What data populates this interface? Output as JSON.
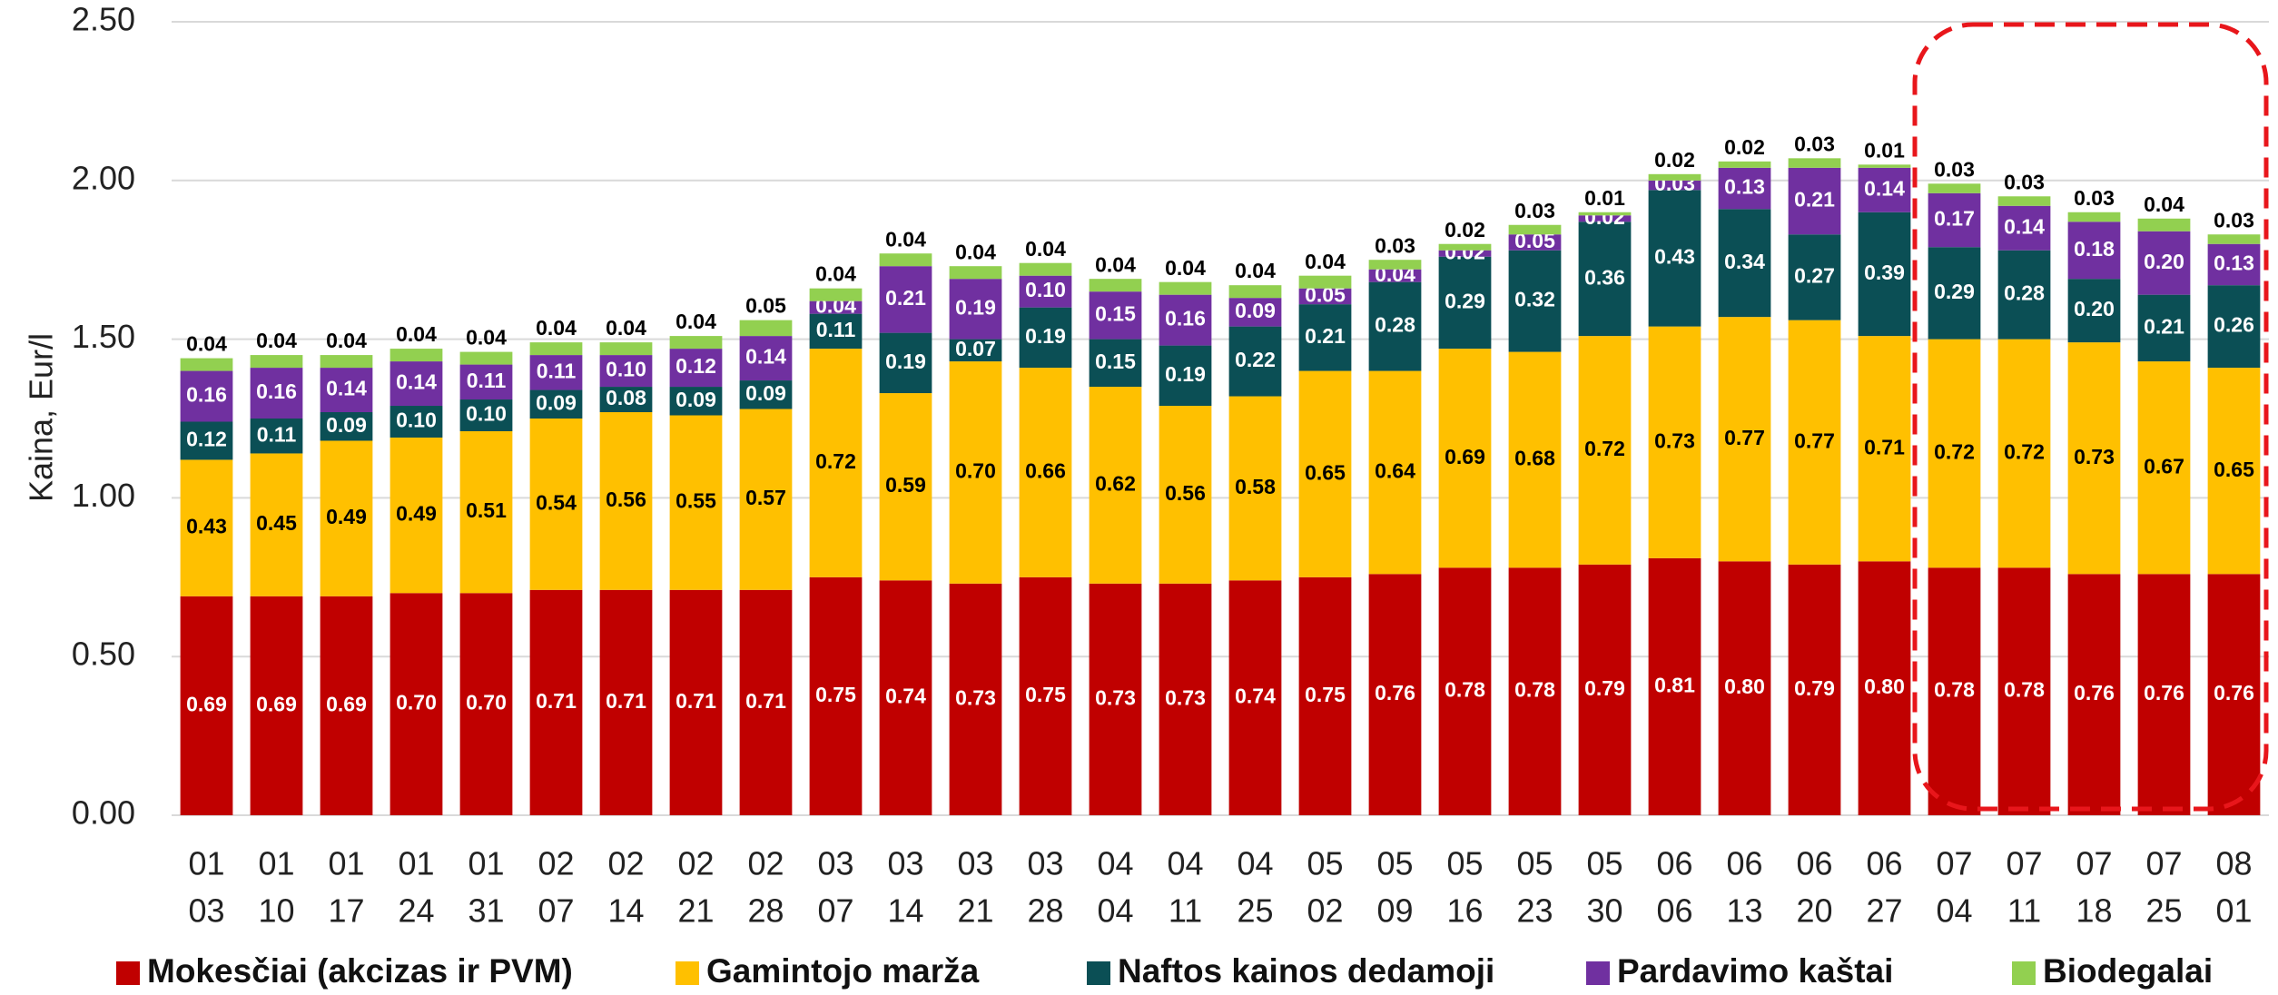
{
  "chart_data": {
    "type": "stacked_bar",
    "y_label": "Kaina, Eur/l",
    "categories": [
      [
        "01",
        "03"
      ],
      [
        "01",
        "10"
      ],
      [
        "01",
        "17"
      ],
      [
        "01",
        "24"
      ],
      [
        "01",
        "31"
      ],
      [
        "02",
        "07"
      ],
      [
        "02",
        "14"
      ],
      [
        "02",
        "21"
      ],
      [
        "02",
        "28"
      ],
      [
        "03",
        "07"
      ],
      [
        "03",
        "14"
      ],
      [
        "03",
        "21"
      ],
      [
        "03",
        "28"
      ],
      [
        "04",
        "04"
      ],
      [
        "04",
        "11"
      ],
      [
        "04",
        "25"
      ],
      [
        "05",
        "02"
      ],
      [
        "05",
        "09"
      ],
      [
        "05",
        "16"
      ],
      [
        "05",
        "23"
      ],
      [
        "05",
        "30"
      ],
      [
        "06",
        "06"
      ],
      [
        "06",
        "13"
      ],
      [
        "06",
        "20"
      ],
      [
        "06",
        "27"
      ],
      [
        "07",
        "04"
      ],
      [
        "07",
        "11"
      ],
      [
        "07",
        "18"
      ],
      [
        "07",
        "25"
      ],
      [
        "08",
        "01"
      ]
    ],
    "series": [
      {
        "name": "Mokesčiai (akcizas ir PVM)",
        "color": "#c00000",
        "label_color": "#ffffff",
        "values": [
          0.69,
          0.69,
          0.69,
          0.7,
          0.7,
          0.71,
          0.71,
          0.71,
          0.71,
          0.75,
          0.74,
          0.73,
          0.75,
          0.73,
          0.73,
          0.74,
          0.75,
          0.76,
          0.78,
          0.78,
          0.79,
          0.81,
          0.8,
          0.79,
          0.8,
          0.78,
          0.78,
          0.76,
          0.76,
          0.76
        ],
        "value_labels": [
          "0.69",
          "0.69",
          "0.69",
          "0.70",
          "0.70",
          "0.71",
          "0.71",
          "0.71",
          "0.71",
          "0.75",
          "0.74",
          "0.73",
          "0.75",
          "0.73",
          "0.73",
          "0.74",
          "0.75",
          "0.76",
          "0.78",
          "0.78",
          "0.79",
          "0.81",
          "0.80",
          "0.79",
          "0.80",
          "0.78",
          "0.78",
          "0.76",
          "0.76",
          "0.76"
        ]
      },
      {
        "name": "Gamintojo marža",
        "color": "#ffc000",
        "label_color": "#000000",
        "values": [
          0.43,
          0.45,
          0.49,
          0.49,
          0.51,
          0.54,
          0.56,
          0.55,
          0.57,
          0.72,
          0.59,
          0.7,
          0.66,
          0.62,
          0.56,
          0.58,
          0.65,
          0.64,
          0.69,
          0.68,
          0.72,
          0.73,
          0.77,
          0.77,
          0.71,
          0.72,
          0.72,
          0.73,
          0.67,
          0.65
        ],
        "value_labels": [
          "0.43",
          "0.45",
          "0.49",
          "0.49",
          "0.51",
          "0.54",
          "0.56",
          "0.55",
          "0.57",
          "0.72",
          "0.59",
          "0.70",
          "0.66",
          "0.62",
          "0.56",
          "0.58",
          "0.65",
          "0.64",
          "0.69",
          "0.68",
          "0.72",
          "0.73",
          "0.77",
          "0.77",
          "0.71",
          "0.72",
          "0.72",
          "0.73",
          "0.67",
          "0.65"
        ]
      },
      {
        "name": "Naftos kainos dedamoji",
        "color": "#0b4f55",
        "label_color": "#ffffff",
        "values": [
          0.12,
          0.11,
          0.09,
          0.1,
          0.1,
          0.09,
          0.08,
          0.09,
          0.09,
          0.11,
          0.19,
          0.07,
          0.19,
          0.15,
          0.19,
          0.22,
          0.21,
          0.28,
          0.29,
          0.32,
          0.36,
          0.43,
          0.34,
          0.27,
          0.39,
          0.29,
          0.28,
          0.2,
          0.21,
          0.26
        ],
        "value_labels": [
          "0.12",
          "0.11",
          "0.09",
          "0.10",
          "0.10",
          "0.09",
          "0.08",
          "0.09",
          "0.09",
          "0.11",
          "0.19",
          "0.07",
          "0.19",
          "0.15",
          "0.19",
          "0.22",
          "0.21",
          "0.28",
          "0.29",
          "0.32",
          "0.36",
          "0.43",
          "0.34",
          "0.27",
          "0.39",
          "0.29",
          "0.28",
          "0.20",
          "0.21",
          "0.26"
        ]
      },
      {
        "name": "Pardavimo kaštai",
        "color": "#7030a0",
        "label_color": "#ffffff",
        "values": [
          0.16,
          0.16,
          0.14,
          0.14,
          0.11,
          0.11,
          0.1,
          0.12,
          0.14,
          0.04,
          0.21,
          0.19,
          0.1,
          0.15,
          0.16,
          0.09,
          0.05,
          0.04,
          0.02,
          0.05,
          0.02,
          0.03,
          0.13,
          0.21,
          0.14,
          0.17,
          0.14,
          0.18,
          0.2,
          0.13
        ],
        "value_labels": [
          "0.16",
          "0.16",
          "0.14",
          "0.14",
          "0.11",
          "0.11",
          "0.10",
          "0.12",
          "0.14",
          "0.04",
          "0.21",
          "0.19",
          "0.10",
          "0.15",
          "0.16",
          "0.09",
          "0.05",
          "0.04",
          "0.02",
          "0.05",
          "0.02",
          "0.03",
          "0.13",
          "0.21",
          "0.14",
          "0.17",
          "0.14",
          "0.18",
          "0.20",
          "0.13"
        ]
      },
      {
        "name": "Biodegalai",
        "color": "#92d050",
        "label_color": "#000000",
        "label_position": "above",
        "values": [
          0.04,
          0.04,
          0.04,
          0.04,
          0.04,
          0.04,
          0.04,
          0.04,
          0.05,
          0.04,
          0.04,
          0.04,
          0.04,
          0.04,
          0.04,
          0.04,
          0.04,
          0.03,
          0.02,
          0.03,
          0.01,
          0.02,
          0.02,
          0.03,
          0.01,
          0.03,
          0.03,
          0.03,
          0.04,
          0.03
        ],
        "value_labels": [
          "0.04",
          "0.04",
          "0.04",
          "0.04",
          "0.04",
          "0.04",
          "0.04",
          "0.04",
          "0.05",
          "0.04",
          "0.04",
          "0.04",
          "0.04",
          "0.04",
          "0.04",
          "0.04",
          "0.04",
          "0.03",
          "0.02",
          "0.03",
          "0.01",
          "0.02",
          "0.02",
          "0.03",
          "0.01",
          "0.03",
          "0.03",
          "0.03",
          "0.04",
          "0.03"
        ]
      }
    ],
    "ylim": [
      0,
      2.5
    ],
    "yticks": [
      {
        "value": 0,
        "label": "0.00"
      },
      {
        "value": 0.5,
        "label": "0.50"
      },
      {
        "value": 1,
        "label": "1.00"
      },
      {
        "value": 1.5,
        "label": "1.50"
      },
      {
        "value": 2,
        "label": "2.00"
      },
      {
        "value": 2.5,
        "label": "2.50"
      }
    ],
    "grid": true,
    "legend": "bottom"
  }
}
